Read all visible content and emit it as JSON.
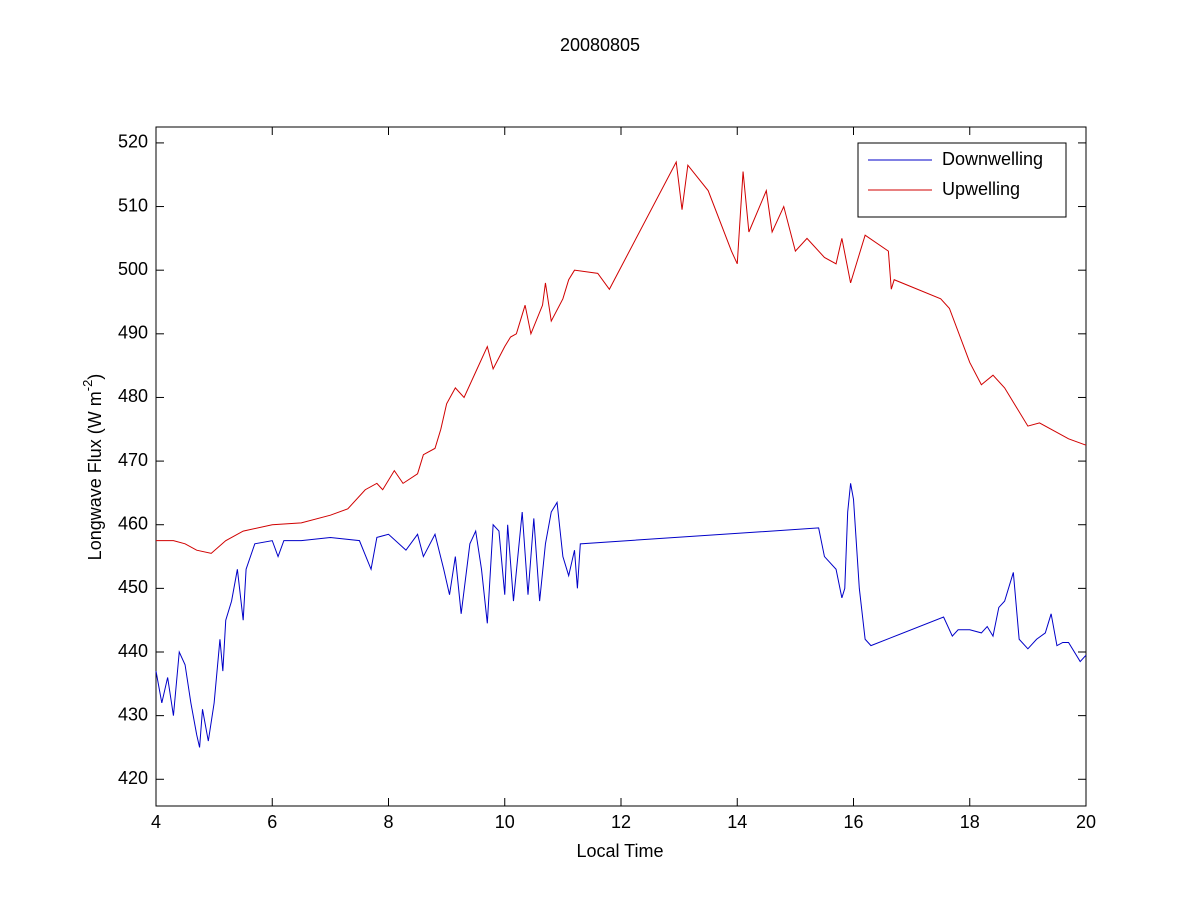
{
  "chart_data": {
    "type": "line",
    "title": "20080805",
    "x_label": "Local Time",
    "y_label": {
      "text": "Longwave Flux (W m",
      "superscript": "-2",
      "suffix": ")"
    },
    "xlim": [
      4,
      20
    ],
    "xticks": [
      4,
      6,
      8,
      10,
      12,
      14,
      16,
      18,
      20
    ],
    "ylim": [
      415.8,
      522.5
    ],
    "yticks": [
      420,
      430,
      440,
      450,
      460,
      470,
      480,
      490,
      500,
      510,
      520
    ],
    "grid": false,
    "legend": "northeast",
    "series": [
      {
        "name": "Downwelling",
        "color": "#0000c8",
        "x": [
          4.0,
          4.1,
          4.2,
          4.3,
          4.4,
          4.5,
          4.6,
          4.7,
          4.75,
          4.8,
          4.9,
          5.0,
          5.1,
          5.15,
          5.2,
          5.3,
          5.4,
          5.5,
          5.55,
          5.7,
          6.0,
          6.1,
          6.2,
          6.5,
          7.0,
          7.5,
          7.7,
          7.8,
          8.0,
          8.3,
          8.5,
          8.6,
          8.8,
          8.95,
          9.05,
          9.15,
          9.25,
          9.4,
          9.5,
          9.6,
          9.7,
          9.8,
          9.9,
          10.0,
          10.05,
          10.15,
          10.3,
          10.4,
          10.5,
          10.6,
          10.7,
          10.8,
          10.9,
          11.0,
          11.1,
          11.2,
          11.25,
          11.3,
          15.4,
          15.5,
          15.7,
          15.8,
          15.85,
          15.9,
          15.95,
          16.0,
          16.1,
          16.2,
          16.3,
          17.55,
          17.7,
          17.8,
          18.0,
          18.2,
          18.3,
          18.4,
          18.5,
          18.6,
          18.75,
          18.85,
          19.0,
          19.15,
          19.3,
          19.4,
          19.5,
          19.6,
          19.7,
          19.8,
          19.9,
          20.0
        ],
        "values": [
          437,
          432,
          436,
          430,
          440,
          438,
          432,
          427,
          425,
          431,
          426,
          432,
          442,
          437,
          445,
          448,
          453,
          445,
          453,
          457,
          457.5,
          455,
          457.5,
          457.5,
          458,
          457.5,
          453,
          458,
          458.5,
          456,
          458.5,
          455,
          458.5,
          453,
          449,
          455,
          446,
          457,
          459,
          453,
          444.5,
          460,
          459,
          449,
          460,
          448,
          462,
          449,
          461,
          448,
          457,
          462,
          463.5,
          455,
          452,
          456,
          450,
          457,
          459.5,
          455,
          453,
          448.5,
          450,
          462,
          466.5,
          464,
          450,
          442,
          441,
          445.5,
          442.5,
          443.5,
          443.5,
          443,
          444,
          442.5,
          447,
          448,
          452.5,
          442,
          440.5,
          442,
          443,
          446,
          441,
          441.5,
          441.5,
          440,
          438.5,
          439.5
        ]
      },
      {
        "name": "Upwelling",
        "color": "#d00000",
        "x": [
          4.0,
          4.3,
          4.5,
          4.7,
          4.95,
          5.2,
          5.5,
          6.0,
          6.5,
          7.0,
          7.3,
          7.6,
          7.8,
          7.9,
          8.1,
          8.25,
          8.5,
          8.6,
          8.8,
          8.9,
          9.0,
          9.15,
          9.3,
          9.5,
          9.7,
          9.8,
          10.0,
          10.1,
          10.2,
          10.35,
          10.45,
          10.65,
          10.7,
          10.8,
          11.0,
          11.1,
          11.2,
          11.6,
          11.8,
          12.95,
          13.05,
          13.15,
          13.5,
          13.9,
          14.0,
          14.1,
          14.2,
          14.5,
          14.6,
          14.8,
          15.0,
          15.2,
          15.5,
          15.7,
          15.8,
          15.95,
          16.1,
          16.2,
          16.6,
          16.65,
          16.7,
          17.5,
          17.65,
          18.0,
          18.2,
          18.4,
          18.6,
          18.8,
          19.0,
          19.2,
          19.5,
          19.7,
          20.0
        ],
        "values": [
          457.5,
          457.5,
          457,
          456,
          455.5,
          457.5,
          459,
          460,
          460.3,
          461.5,
          462.5,
          465.5,
          466.5,
          465.5,
          468.5,
          466.5,
          468,
          471,
          472,
          475,
          479,
          481.5,
          480,
          484,
          488,
          484.5,
          488,
          489.5,
          490,
          494.5,
          490,
          494.5,
          498,
          492,
          495.5,
          498.5,
          500,
          499.5,
          497,
          517,
          509.5,
          516.5,
          512.5,
          503,
          501,
          515.5,
          506,
          512.5,
          506,
          510,
          503,
          505,
          502,
          501,
          505,
          498,
          502.5,
          505.5,
          503,
          497,
          498.5,
          495.5,
          494,
          485.5,
          482,
          483.5,
          481.5,
          478.5,
          475.5,
          476,
          474.5,
          473.5,
          472.5
        ]
      }
    ]
  }
}
